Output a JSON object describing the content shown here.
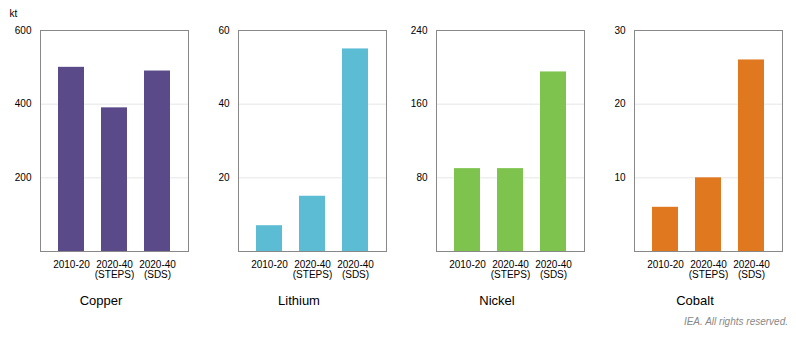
{
  "chart_data": [
    {
      "type": "bar",
      "title": "Copper",
      "ylabel": "kt",
      "categories": [
        "2010-20",
        "2020-40\n(STEPS)",
        "2020-40\n(SDS)"
      ],
      "values": [
        500,
        390,
        490
      ],
      "color": "#5b4a8a",
      "ylim": [
        0,
        600
      ],
      "yticks": [
        200,
        400,
        600
      ],
      "grid": true
    },
    {
      "type": "bar",
      "title": "Lithium",
      "categories": [
        "2010-20",
        "2020-40\n(STEPS)",
        "2020-40\n(SDS)"
      ],
      "values": [
        7,
        15,
        55
      ],
      "color": "#5bbcd4",
      "ylim": [
        0,
        60
      ],
      "yticks": [
        20,
        40,
        60
      ],
      "grid": true
    },
    {
      "type": "bar",
      "title": "Nickel",
      "categories": [
        "2010-20",
        "2020-40\n(STEPS)",
        "2020-40\n(SDS)"
      ],
      "values": [
        90,
        90,
        195
      ],
      "color": "#7dc34e",
      "ylim": [
        0,
        240
      ],
      "yticks": [
        80,
        160,
        240
      ],
      "grid": true
    },
    {
      "type": "bar",
      "title": "Cobalt",
      "categories": [
        "2010-20",
        "2020-40\n(STEPS)",
        "2020-40\n(SDS)"
      ],
      "values": [
        6,
        10,
        26
      ],
      "color": "#e07820",
      "ylim": [
        0,
        30
      ],
      "yticks": [
        10,
        20,
        30
      ],
      "grid": true,
      "annotations": [
        "IEA. All rights reserved."
      ]
    }
  ]
}
